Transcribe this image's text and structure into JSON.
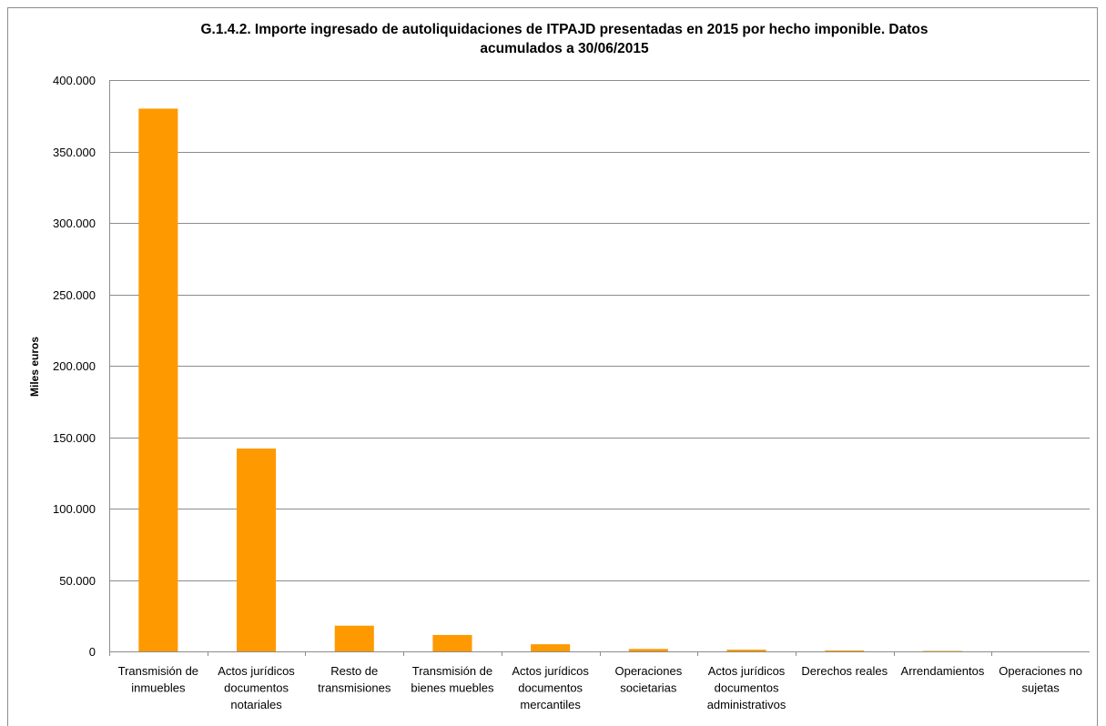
{
  "chart_data": {
    "type": "bar",
    "title_lines": [
      "G.1.4.2. Importe ingresado de autoliquidaciones de ITPAJD presentadas en 2015 por hecho imponible. Datos",
      "acumulados a 30/06/2015"
    ],
    "ylabel": "Miles euros",
    "xlabel": "",
    "ylim": [
      0,
      400000
    ],
    "yticks": [
      0,
      50000,
      100000,
      150000,
      200000,
      250000,
      300000,
      350000,
      400000
    ],
    "ytick_labels": [
      "0",
      "50.000",
      "100.000",
      "150.000",
      "200.000",
      "250.000",
      "300.000",
      "350.000",
      "400.000"
    ],
    "categories": [
      [
        "Transmisión de",
        "inmuebles"
      ],
      [
        "Actos  jurídicos",
        "documentos",
        "notariales"
      ],
      [
        "Resto de",
        "transmisiones"
      ],
      [
        "Transmisión de",
        "bienes muebles"
      ],
      [
        "Actos  jurídicos",
        "documentos",
        "mercantiles"
      ],
      [
        "Operaciones",
        "societarias"
      ],
      [
        "Actos  jurídicos",
        "documentos",
        "administrativos"
      ],
      [
        "Derechos reales"
      ],
      [
        "Arrendamientos"
      ],
      [
        "Operaciones no",
        "sujetas"
      ]
    ],
    "values": [
      380000,
      142000,
      18000,
      11500,
      5000,
      1700,
      1200,
      600,
      300,
      0
    ],
    "grid": true,
    "legend": "none",
    "colors": {
      "bar": "#FF9900",
      "bar_edge": "#E68A00",
      "grid": "#8c8c8c"
    }
  }
}
